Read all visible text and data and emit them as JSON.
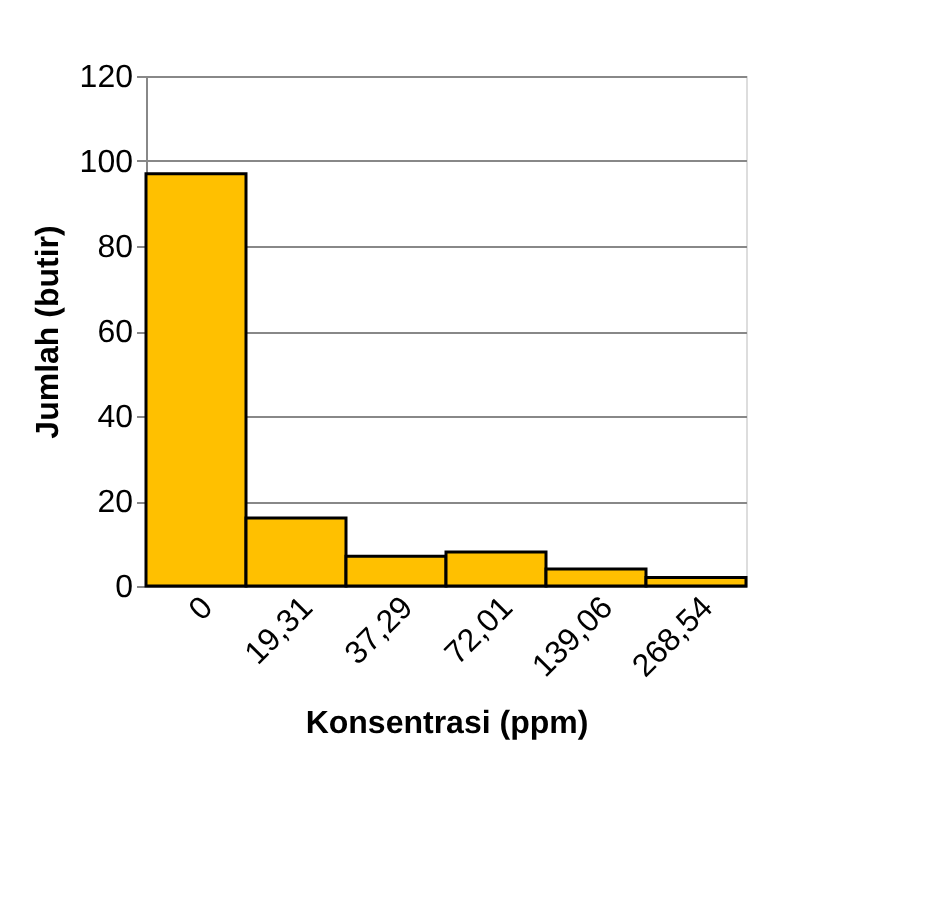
{
  "chart_data": {
    "type": "bar",
    "xlabel": "Konsentrasi (ppm)",
    "ylabel": "Jumlah (butir)",
    "categories": [
      "0",
      "19,31",
      "37,29",
      "72,01",
      "139,06",
      "268,54"
    ],
    "values": [
      97,
      16,
      7,
      8,
      4,
      2
    ],
    "color": "#ffc000",
    "ylim": [
      0,
      120
    ],
    "yticks": [
      0,
      20,
      40,
      60,
      80,
      100,
      120
    ],
    "grid": "y"
  }
}
